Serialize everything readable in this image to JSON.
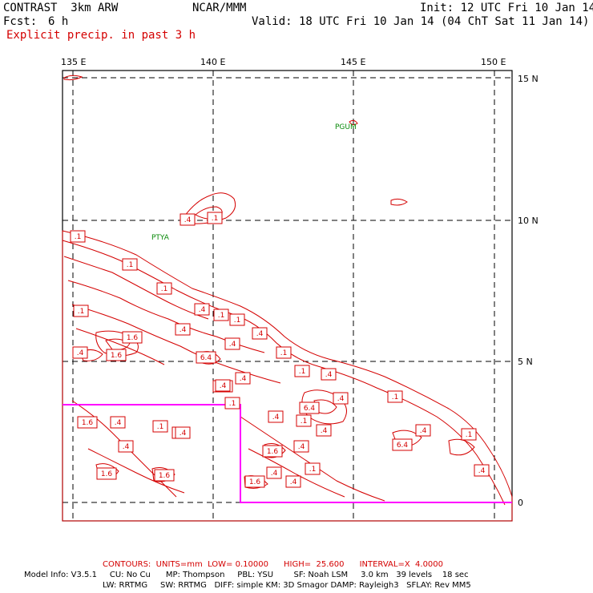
{
  "header": {
    "model": "CONTRAST  3km ARW",
    "org": "NCAR/MMM",
    "init": "Init: 12 UTC Fri 10 Jan 14",
    "fcst_label": "Fcst:",
    "fcst_value": "6 h",
    "valid": "Valid: 18 UTC Fri 10 Jan 14 (04 ChT Sat 11 Jan 14)",
    "field": "Explicit precip. in past 3 h"
  },
  "axes": {
    "lon_labels": [
      "135 E",
      "140 E",
      "145 E",
      "150 E"
    ],
    "lat_labels": [
      "15 N",
      "10 N",
      "5 N",
      "0"
    ]
  },
  "stations": [
    {
      "name": "PGUM"
    },
    {
      "name": "PTYA"
    }
  ],
  "contour_labels": [
    ".1",
    ".1",
    ".1",
    ".1",
    ".4",
    ".1",
    ".1",
    ".4",
    ".4",
    ".1",
    ".4",
    ".4",
    ".1",
    ".4",
    ".4",
    ".1",
    ".4",
    ".4",
    ".1",
    ".4",
    ".4",
    ".1",
    ".1",
    "1.6",
    "1.6",
    "1.6",
    "1.6",
    "1.6",
    "1.6",
    "1.6",
    "1.6",
    "6.4",
    "6.4",
    "6.4",
    ".4",
    ".4",
    ".4",
    ".4",
    ".4",
    ".4",
    ".1",
    ".1",
    ".4",
    ".1",
    ".4",
    ".1",
    ".4"
  ],
  "footer": {
    "contours": "CONTOURS:  UNITS=mm  LOW= 0.10000      HIGH=  25.600      INTERVAL=X  4.0000",
    "model_info_1": "Model Info: V3.5.1     CU: No Cu      MP: Thompson     PBL: YSU        SF: Noah LSM     3.0 km   39 levels    18 sec",
    "model_info_2": "LW: RRTMG     SW: RRTMG   DIFF: simple KM: 3D Smagor DAMP: Rayleigh3   SFLAY: Rev MM5"
  },
  "colors": {
    "contour": "#d40000",
    "grid": "#000000",
    "domain_box": "#ff00ff",
    "station": "#0a8a0a"
  }
}
